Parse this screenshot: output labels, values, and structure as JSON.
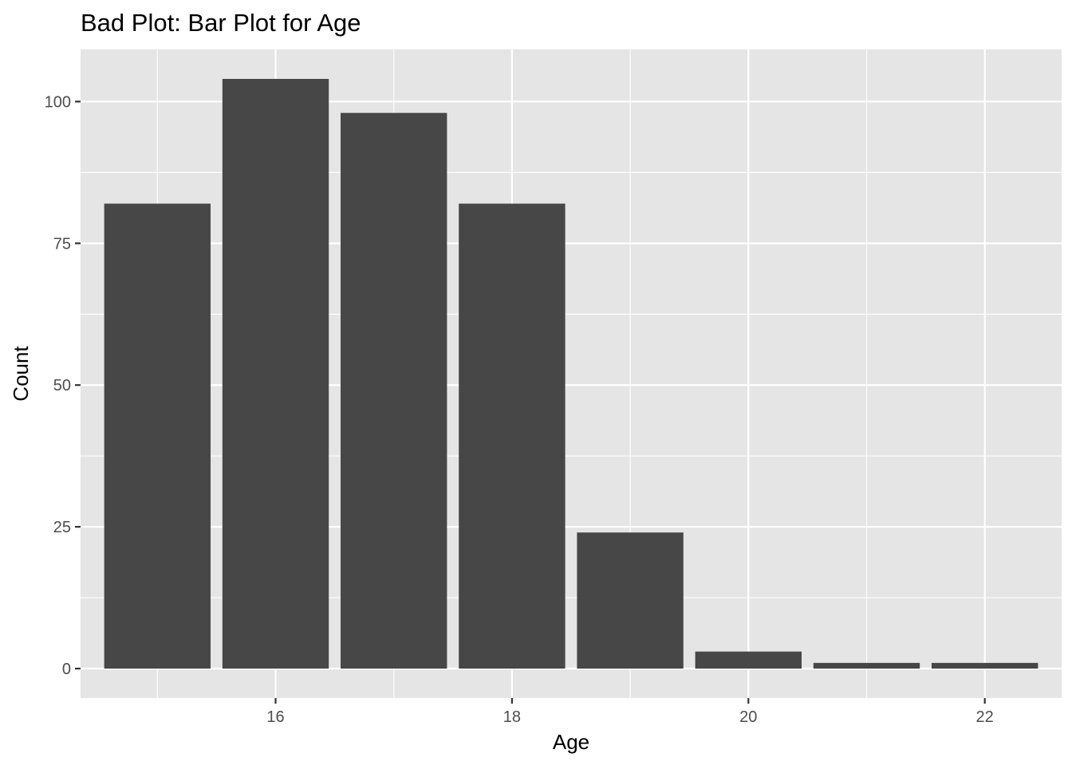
{
  "chart_data": {
    "type": "bar",
    "title": "Bad Plot: Bar Plot for Age",
    "xlabel": "Age",
    "ylabel": "Count",
    "x": [
      15,
      16,
      17,
      18,
      19,
      20,
      21,
      22
    ],
    "values": [
      82,
      104,
      98,
      82,
      24,
      3,
      1,
      1
    ],
    "xlim": [
      14.35,
      22.65
    ],
    "ylim": [
      -5.2,
      109.2
    ],
    "x_ticks": [
      16,
      18,
      20,
      22
    ],
    "x_tick_labels": [
      "16",
      "18",
      "20",
      "22"
    ],
    "y_ticks": [
      0,
      25,
      50,
      75,
      100
    ],
    "y_tick_labels": [
      "0",
      "25",
      "50",
      "75",
      "100"
    ],
    "grid": true,
    "legend": "none",
    "colors": {
      "bar": "#474747",
      "panel": "#e5e5e5",
      "grid": "#ffffff"
    }
  }
}
